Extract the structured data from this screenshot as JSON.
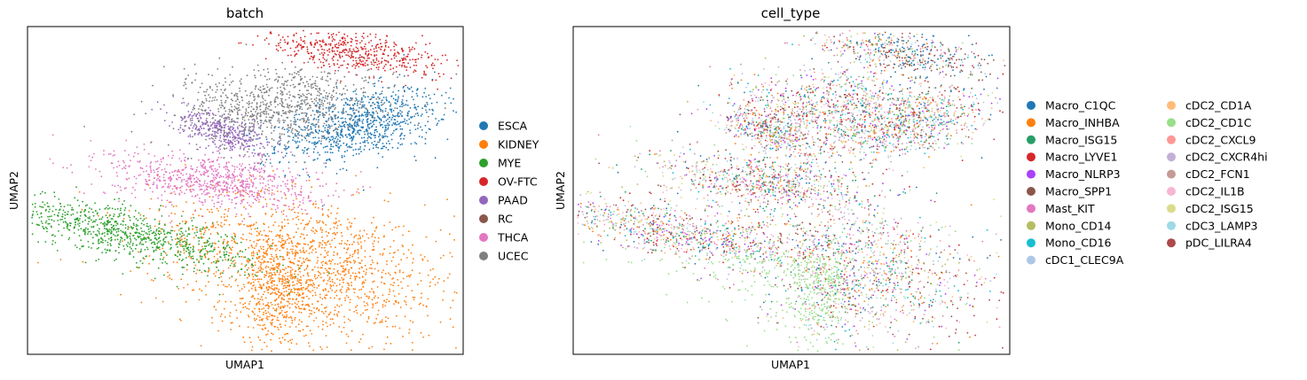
{
  "chart_data": [
    {
      "type": "scatter",
      "title": "batch",
      "xlabel": "UMAP1",
      "ylabel": "UMAP2",
      "xticks": "hidden",
      "yticks": "hidden",
      "grid": false,
      "legend_placement": "right",
      "legend": [
        {
          "name": "ESCA",
          "color": "#1f77b4"
        },
        {
          "name": "KIDNEY",
          "color": "#ff7f0e"
        },
        {
          "name": "MYE",
          "color": "#2ca02c"
        },
        {
          "name": "OV-FTC",
          "color": "#d62728"
        },
        {
          "name": "PAAD",
          "color": "#9467bd"
        },
        {
          "name": "RC",
          "color": "#8c564b"
        },
        {
          "name": "THCA",
          "color": "#e377c2"
        },
        {
          "name": "UCEC",
          "color": "#7f7f7f"
        }
      ],
      "clusters": [
        {
          "series": "ESCA",
          "center": [
            0.76,
            0.7
          ],
          "spread": [
            0.1,
            0.05
          ],
          "angle": 18,
          "count": 900
        },
        {
          "series": "KIDNEY",
          "center": [
            0.64,
            0.28
          ],
          "spread": [
            0.18,
            0.1
          ],
          "angle": -20,
          "count": 1400
        },
        {
          "series": "KIDNEY",
          "center": [
            0.58,
            0.18
          ],
          "spread": [
            0.06,
            0.09
          ],
          "angle": 0,
          "count": 500
        },
        {
          "series": "MYE",
          "center": [
            0.22,
            0.37
          ],
          "spread": [
            0.16,
            0.035
          ],
          "angle": -16,
          "count": 900
        },
        {
          "series": "OV-FTC",
          "center": [
            0.76,
            0.92
          ],
          "spread": [
            0.03,
            0.1
          ],
          "angle": 80,
          "count": 500
        },
        {
          "series": "PAAD",
          "center": [
            0.45,
            0.68
          ],
          "spread": [
            0.06,
            0.025
          ],
          "angle": -28,
          "count": 400
        },
        {
          "series": "THCA",
          "center": [
            0.43,
            0.53
          ],
          "spread": [
            0.12,
            0.04
          ],
          "angle": -8,
          "count": 800
        },
        {
          "series": "UCEC",
          "center": [
            0.58,
            0.76
          ],
          "spread": [
            0.06,
            0.12
          ],
          "angle": 95,
          "count": 900
        }
      ]
    },
    {
      "type": "scatter",
      "title": "cell_type",
      "xlabel": "UMAP1",
      "ylabel": "UMAP2",
      "xticks": "hidden",
      "yticks": "hidden",
      "grid": false,
      "legend_placement": "right",
      "legend_columns": 2,
      "legend": [
        {
          "name": "Macro_C1QC",
          "color": "#1f77b4"
        },
        {
          "name": "Macro_INHBA",
          "color": "#ff7f0e"
        },
        {
          "name": "Macro_ISG15",
          "color": "#279e68"
        },
        {
          "name": "Macro_LYVE1",
          "color": "#d62728"
        },
        {
          "name": "Macro_NLRP3",
          "color": "#aa40fc"
        },
        {
          "name": "Macro_SPP1",
          "color": "#8c564b"
        },
        {
          "name": "Mast_KIT",
          "color": "#e377c2"
        },
        {
          "name": "Mono_CD14",
          "color": "#b5bd61"
        },
        {
          "name": "Mono_CD16",
          "color": "#17becf"
        },
        {
          "name": "cDC1_CLEC9A",
          "color": "#aec7e8"
        },
        {
          "name": "cDC2_CD1A",
          "color": "#ffbb78"
        },
        {
          "name": "cDC2_CD1C",
          "color": "#98df8a"
        },
        {
          "name": "cDC2_CXCL9",
          "color": "#ff9896"
        },
        {
          "name": "cDC2_CXCR4hi",
          "color": "#c5b0d5"
        },
        {
          "name": "cDC2_FCN1",
          "color": "#c49c94"
        },
        {
          "name": "cDC2_IL1B",
          "color": "#f7b6d2"
        },
        {
          "name": "cDC2_ISG15",
          "color": "#dbdb8d"
        },
        {
          "name": "cDC3_LAMP3",
          "color": "#9edae5"
        },
        {
          "name": "pDC_LILRA4",
          "color": "#ad494a"
        }
      ]
    }
  ],
  "page": {
    "left_title": "batch",
    "right_title": "cell_type"
  }
}
